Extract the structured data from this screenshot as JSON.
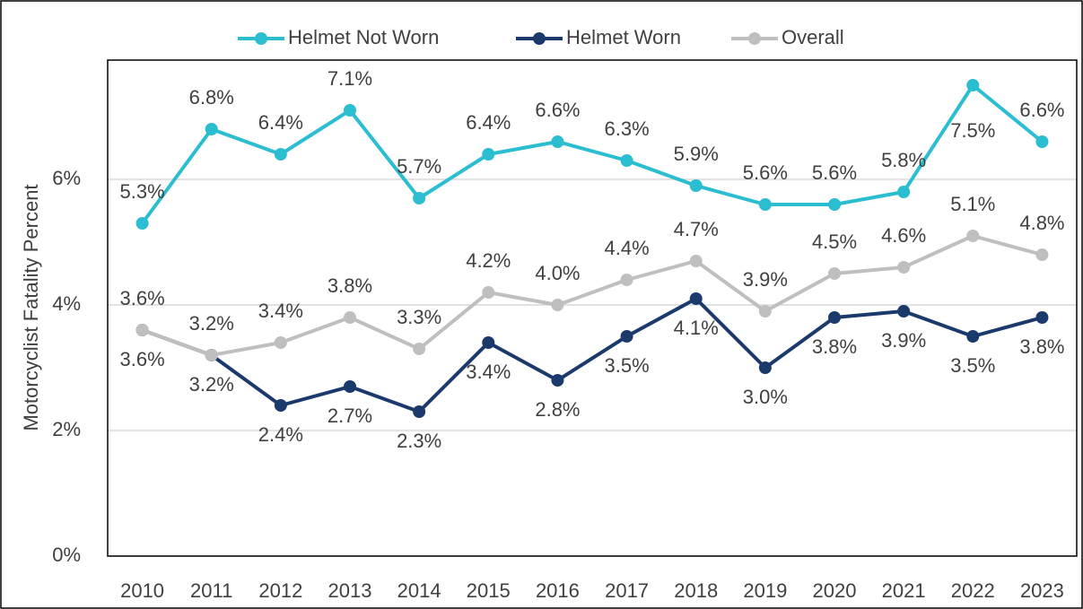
{
  "chart_data": {
    "type": "line",
    "y_label": "Motorcyclist Fatality Percent",
    "categories": [
      "2010",
      "2011",
      "2012",
      "2013",
      "2014",
      "2015",
      "2016",
      "2017",
      "2018",
      "2019",
      "2020",
      "2021",
      "2022",
      "2023"
    ],
    "series": [
      {
        "name": "Helmet Not Worn",
        "color": "#2bbdd0",
        "label_color": "#2a9fb1",
        "label_side": "above",
        "values": [
          5.3,
          6.8,
          6.4,
          7.1,
          5.7,
          6.4,
          6.6,
          6.3,
          5.9,
          5.6,
          5.6,
          5.8,
          7.5,
          6.6
        ],
        "value_labels": [
          "5.3%",
          "6.8%",
          "6.4%",
          "7.1%",
          "5.7%",
          "6.4%",
          "6.6%",
          "6.3%",
          "5.9%",
          "5.6%",
          "5.6%",
          "5.8%",
          "7.5%",
          "6.6%"
        ]
      },
      {
        "name": "Helmet Worn",
        "color": "#1b3a6b",
        "label_color": "#1f3864",
        "label_side": "below",
        "values": [
          3.6,
          3.2,
          2.4,
          2.7,
          2.3,
          3.4,
          2.8,
          3.5,
          4.1,
          3.0,
          3.8,
          3.9,
          3.5,
          3.8
        ],
        "value_labels": [
          "3.6%",
          "3.2%",
          "2.4%",
          "2.7%",
          "2.3%",
          "3.4%",
          "2.8%",
          "3.5%",
          "4.1%",
          "3.0%",
          "3.8%",
          "3.9%",
          "3.5%",
          "3.8%"
        ]
      },
      {
        "name": "Overall",
        "color": "#bfbfbf",
        "label_color": "#404040",
        "label_side": "above",
        "values": [
          3.6,
          3.2,
          3.4,
          3.8,
          3.3,
          4.2,
          4.0,
          4.4,
          4.7,
          3.9,
          4.5,
          4.6,
          5.1,
          4.8
        ],
        "value_labels": [
          "3.6%",
          "3.2%",
          "3.4%",
          "3.8%",
          "3.3%",
          "4.2%",
          "4.0%",
          "4.4%",
          "4.7%",
          "3.9%",
          "4.5%",
          "4.6%",
          "5.1%",
          "4.8%"
        ]
      }
    ],
    "ylim": [
      0,
      7.9
    ],
    "yticks": [
      {
        "value": 0,
        "label": "0%"
      },
      {
        "value": 2,
        "label": "2%"
      },
      {
        "value": 4,
        "label": "4%"
      },
      {
        "value": 6,
        "label": "6%"
      }
    ],
    "grid": true,
    "legend": "top"
  }
}
